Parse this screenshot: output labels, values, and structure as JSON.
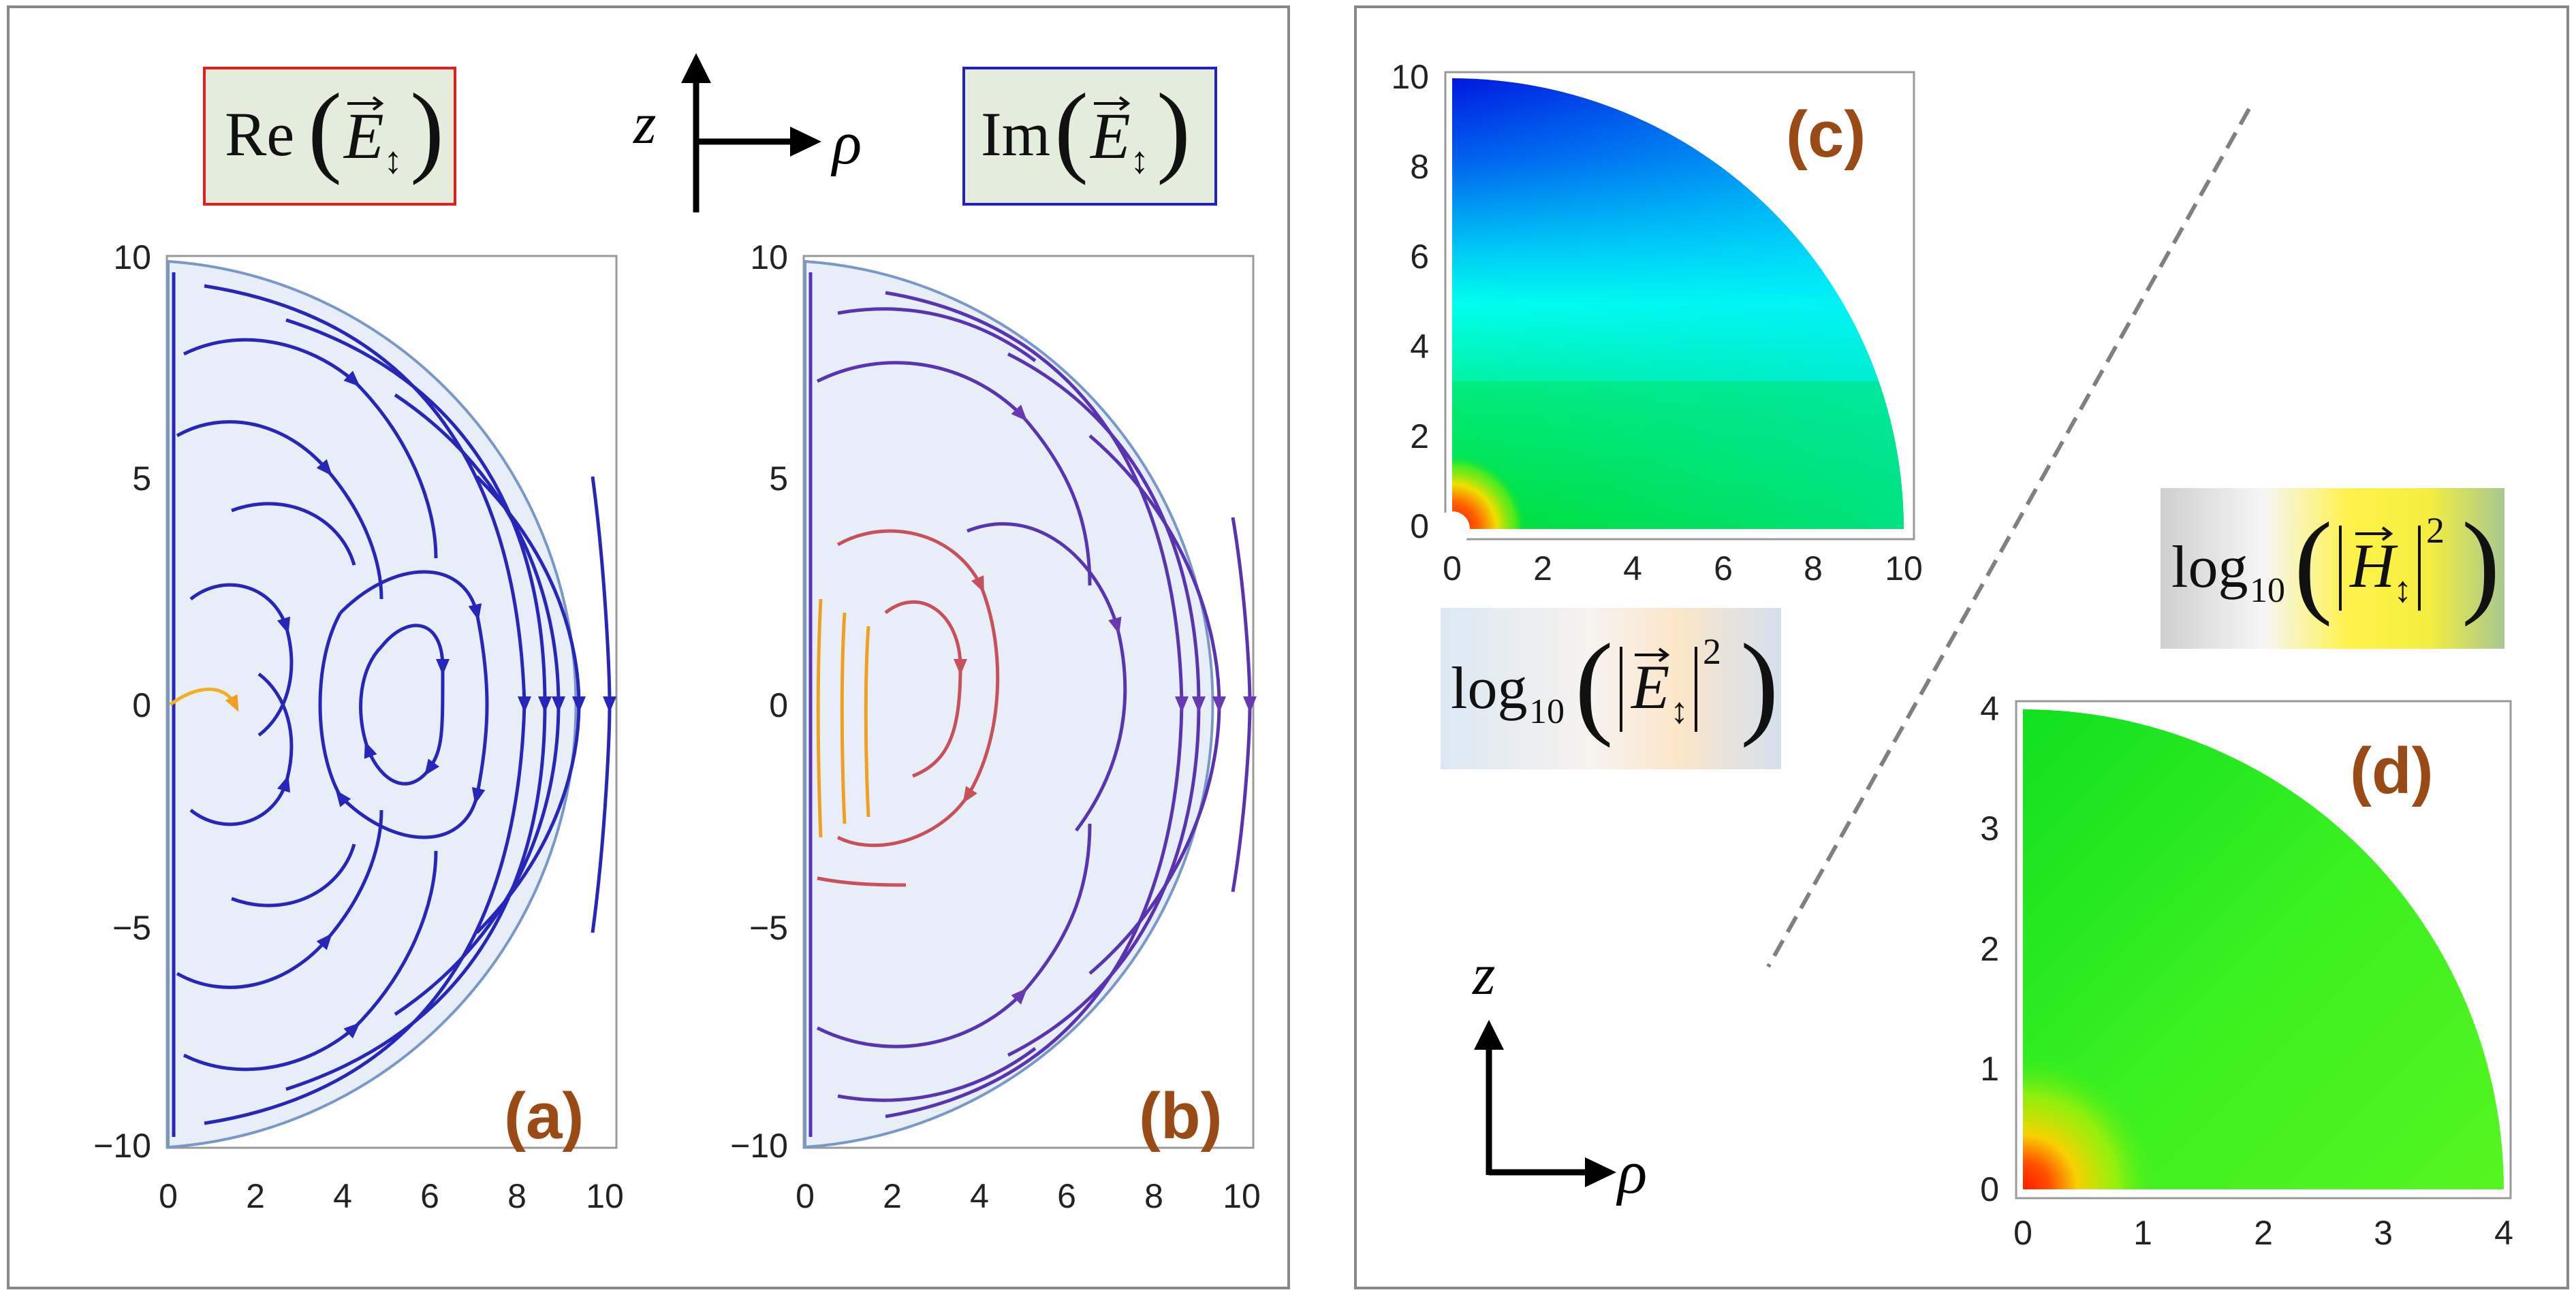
{
  "panel_left": {
    "label_a": "(a)",
    "label_b": "(b)",
    "legend_re": {
      "prefix": "Re",
      "symbol": "E",
      "subscript": "↕"
    },
    "legend_im": {
      "prefix": "Im",
      "symbol": "E",
      "subscript": "↕"
    },
    "axis_z": "z",
    "axis_rho": "ρ",
    "plot_a": {
      "x_ticks": [
        "0",
        "2",
        "4",
        "6",
        "8",
        "10"
      ],
      "y_ticks": [
        "10",
        "5",
        "0",
        "−5",
        "−10"
      ],
      "xlim": [
        0,
        10
      ],
      "ylim": [
        -10,
        10
      ],
      "boundary": "half-disk of radius 10",
      "stream_colors": [
        "#2626b8"
      ],
      "highlight_color": "#f0b020"
    },
    "plot_b": {
      "x_ticks": [
        "0",
        "2",
        "4",
        "6",
        "8",
        "10"
      ],
      "y_ticks": [
        "10",
        "5",
        "0",
        "−5",
        "−10"
      ],
      "xlim": [
        0,
        10
      ],
      "ylim": [
        -10,
        10
      ],
      "boundary": "half-disk of radius 10",
      "stream_colors": [
        "#3b2cb8",
        "#7a3aa8",
        "#c0506a",
        "#f0a020"
      ]
    }
  },
  "panel_right": {
    "label_c": "(c)",
    "label_d": "(d)",
    "legend_e": {
      "prefix": "log",
      "sub": "10",
      "symbol": "E",
      "subscript": "↕",
      "power": "2"
    },
    "legend_h": {
      "prefix": "log",
      "sub": "10",
      "symbol": "H",
      "subscript": "↕",
      "power": "2"
    },
    "axis_z": "z",
    "axis_rho": "ρ",
    "plot_c": {
      "x_ticks": [
        "0",
        "2",
        "4",
        "6",
        "8",
        "10"
      ],
      "y_ticks": [
        "10",
        "8",
        "6",
        "4",
        "2",
        "0"
      ],
      "xlim": [
        0,
        10
      ],
      "ylim": [
        0,
        10
      ],
      "colors": [
        "#0018e0",
        "#00ffff",
        "#00e020",
        "#ff2000"
      ]
    },
    "plot_d": {
      "x_ticks": [
        "0",
        "1",
        "2",
        "3",
        "4"
      ],
      "y_ticks": [
        "4",
        "3",
        "2",
        "1",
        "0"
      ],
      "xlim": [
        0,
        4
      ],
      "ylim": [
        0,
        4
      ],
      "colors": [
        "#11e820",
        "#33f020",
        "#f0e020",
        "#ff2000"
      ]
    }
  }
}
